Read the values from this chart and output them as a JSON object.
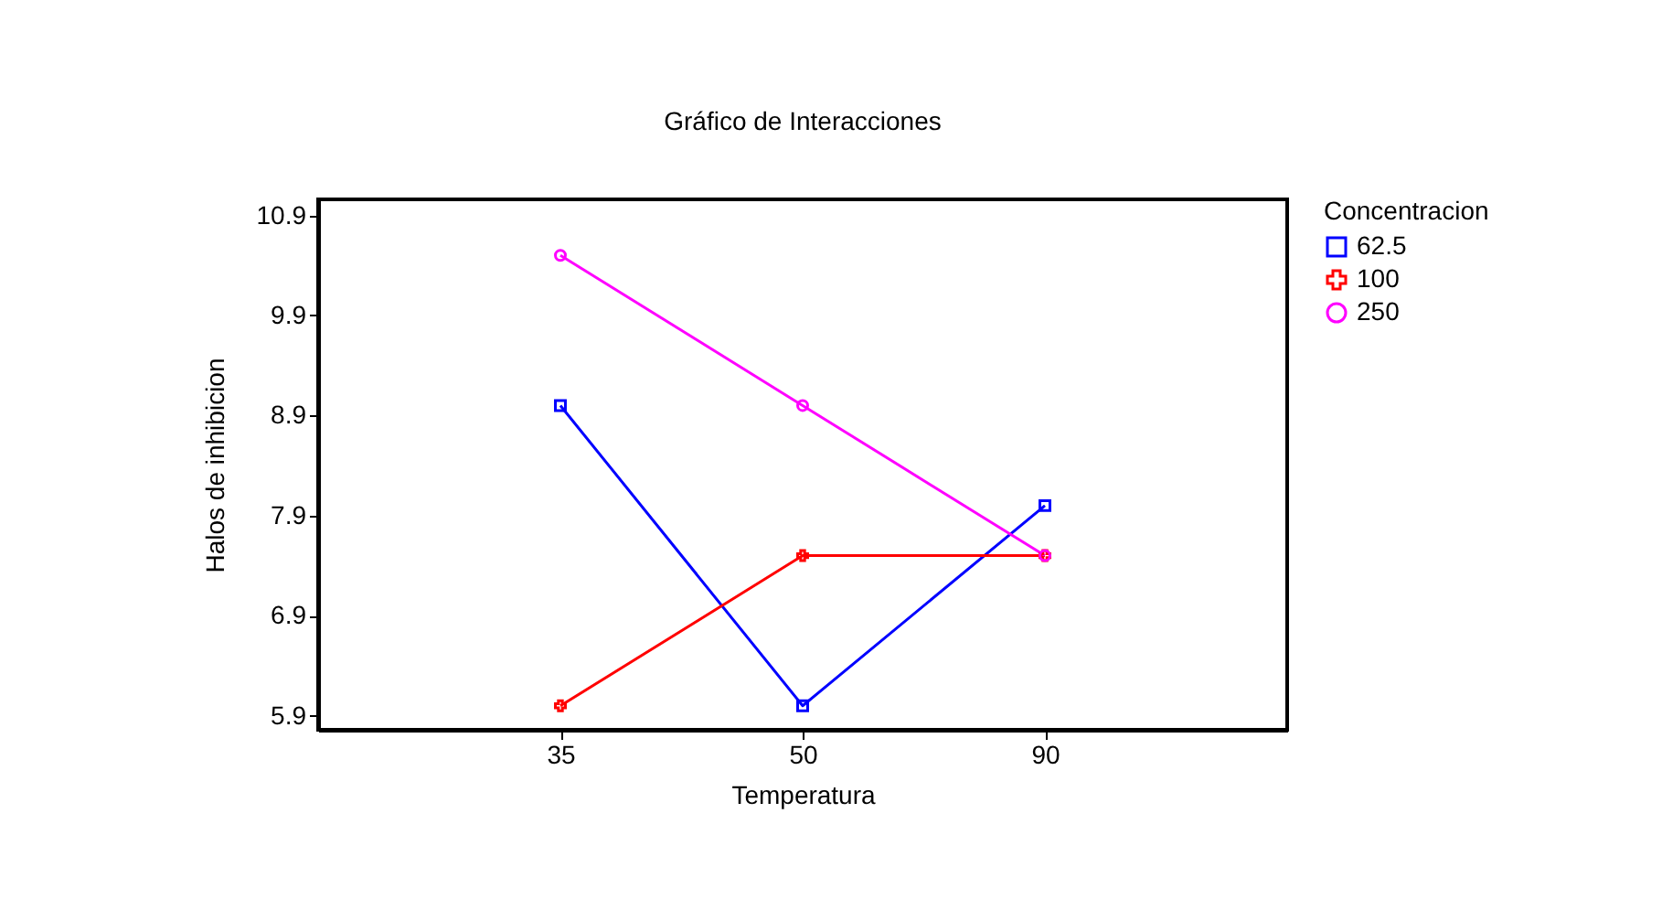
{
  "chart_data": {
    "type": "line",
    "title": "Gráfico de Interacciones",
    "xlabel": "Temperatura",
    "ylabel": "Halos de inhibicion",
    "legend_title": "Concentracion",
    "categories": [
      "35",
      "50",
      "90"
    ],
    "series": [
      {
        "name": "62.5",
        "color": "#0000ff",
        "marker": "square",
        "values": [
          9.0,
          6.0,
          8.0
        ]
      },
      {
        "name": "100",
        "color": "#ff0000",
        "marker": "cross",
        "values": [
          6.0,
          7.5,
          7.5
        ]
      },
      {
        "name": "250",
        "color": "#ff00ff",
        "marker": "circle",
        "values": [
          10.5,
          9.0,
          7.5
        ]
      }
    ],
    "ylim": [
      5.76,
      11.06
    ],
    "yticks": [
      5.9,
      6.9,
      7.9,
      8.9,
      9.9,
      10.9
    ],
    "grid": false,
    "legend": "right",
    "line_style": "solid"
  }
}
